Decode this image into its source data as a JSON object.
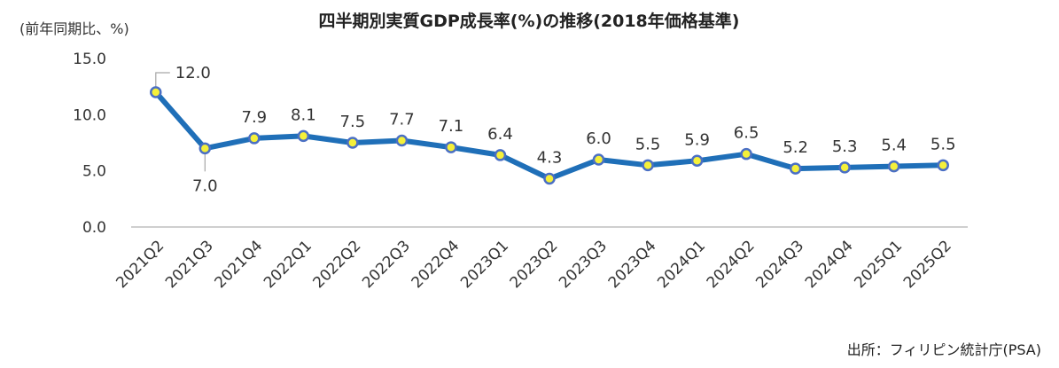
{
  "chart_data": {
    "type": "line",
    "title": "四半期別実質GDP成長率(%)の推移(2018年価格基準)",
    "ylabel": "(前年同期比、%)",
    "source": "出所：フィリピン統計庁(PSA)",
    "categories": [
      "2021Q2",
      "2021Q3",
      "2021Q4",
      "2022Q1",
      "2022Q2",
      "2022Q3",
      "2022Q4",
      "2023Q1",
      "2023Q2",
      "2023Q3",
      "2023Q4",
      "2024Q1",
      "2024Q2",
      "2024Q3",
      "2024Q4",
      "2025Q1",
      "2025Q2"
    ],
    "values": [
      12.0,
      7.0,
      7.9,
      8.1,
      7.5,
      7.7,
      7.1,
      6.4,
      4.3,
      6.0,
      5.5,
      5.9,
      6.5,
      5.2,
      5.3,
      5.4,
      5.5
    ],
    "data_labels": [
      "12.0",
      "7.0",
      "7.9",
      "8.1",
      "7.5",
      "7.7",
      "7.1",
      "6.4",
      "4.3",
      "6.0",
      "5.5",
      "5.9",
      "6.5",
      "5.2",
      "5.3",
      "5.4",
      "5.5"
    ],
    "yticks": [
      "0.0",
      "5.0",
      "10.0",
      "15.0"
    ],
    "ylim": [
      0,
      15
    ],
    "grid": false,
    "colors": {
      "line": "#1f6fb8",
      "marker_fill": "#f5f03a",
      "marker_stroke": "#4a6fc4",
      "text": "#333333",
      "axis": "#bfbfbf"
    }
  }
}
